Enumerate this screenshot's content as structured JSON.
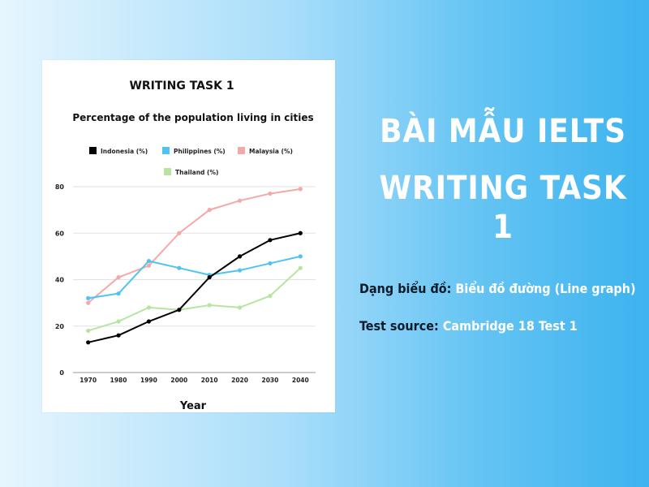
{
  "headline": {
    "line1": "BÀI MẪU IELTS",
    "line2": "WRITING TASK 1"
  },
  "info": {
    "chart_type_label": "Dạng biểu đồ:",
    "chart_type_value": "Biểu đồ đường (Line graph)",
    "source_label": "Test source:",
    "source_value": "Cambridge 18 Test 1"
  },
  "chart_data": {
    "type": "line",
    "title": "WRITING TASK 1",
    "subtitle": "Percentage of the population living in cities",
    "xlabel": "Year",
    "ylabel": "",
    "x": [
      "1970",
      "1980",
      "1990",
      "2000",
      "2010",
      "2020",
      "2030",
      "2040"
    ],
    "ylim": [
      0,
      80
    ],
    "yticks": [
      0,
      20,
      40,
      60,
      80
    ],
    "grid": true,
    "legend_position": "top",
    "series": [
      {
        "name": "Indonesia (%)",
        "color": "#000000",
        "values": [
          13,
          16,
          22,
          27,
          41,
          50,
          57,
          60
        ]
      },
      {
        "name": "Philippines (%)",
        "color": "#4fc3f1",
        "values": [
          32,
          34,
          48,
          45,
          42,
          44,
          47,
          50
        ]
      },
      {
        "name": "Malaysia (%)",
        "color": "#f4a9a8",
        "values": [
          30,
          41,
          46,
          60,
          70,
          74,
          77,
          79
        ]
      },
      {
        "name": "Thailand (%)",
        "color": "#b7e4a0",
        "values": [
          18,
          22,
          28,
          27,
          29,
          28,
          33,
          45
        ]
      }
    ]
  }
}
